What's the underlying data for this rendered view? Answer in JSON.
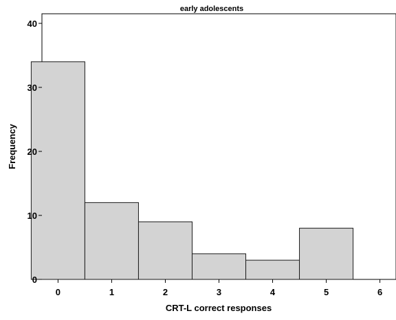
{
  "chart_data": {
    "type": "bar",
    "title": "early adolescents",
    "xlabel": "CRT-L correct responses",
    "ylabel": "Frequency",
    "categories": [
      "0",
      "1",
      "2",
      "3",
      "4",
      "5"
    ],
    "values": [
      34,
      12,
      9,
      4,
      3,
      8
    ],
    "x_ticks": [
      "0",
      "1",
      "2",
      "3",
      "4",
      "5",
      "6"
    ],
    "y_ticks": [
      "0",
      "10",
      "20",
      "30",
      "40"
    ],
    "xlim": [
      -0.3,
      6.3
    ],
    "ylim": [
      0,
      41.5
    ],
    "grid": false,
    "bar_color": "#d3d3d3",
    "edge_color": "#1a1a1a"
  }
}
